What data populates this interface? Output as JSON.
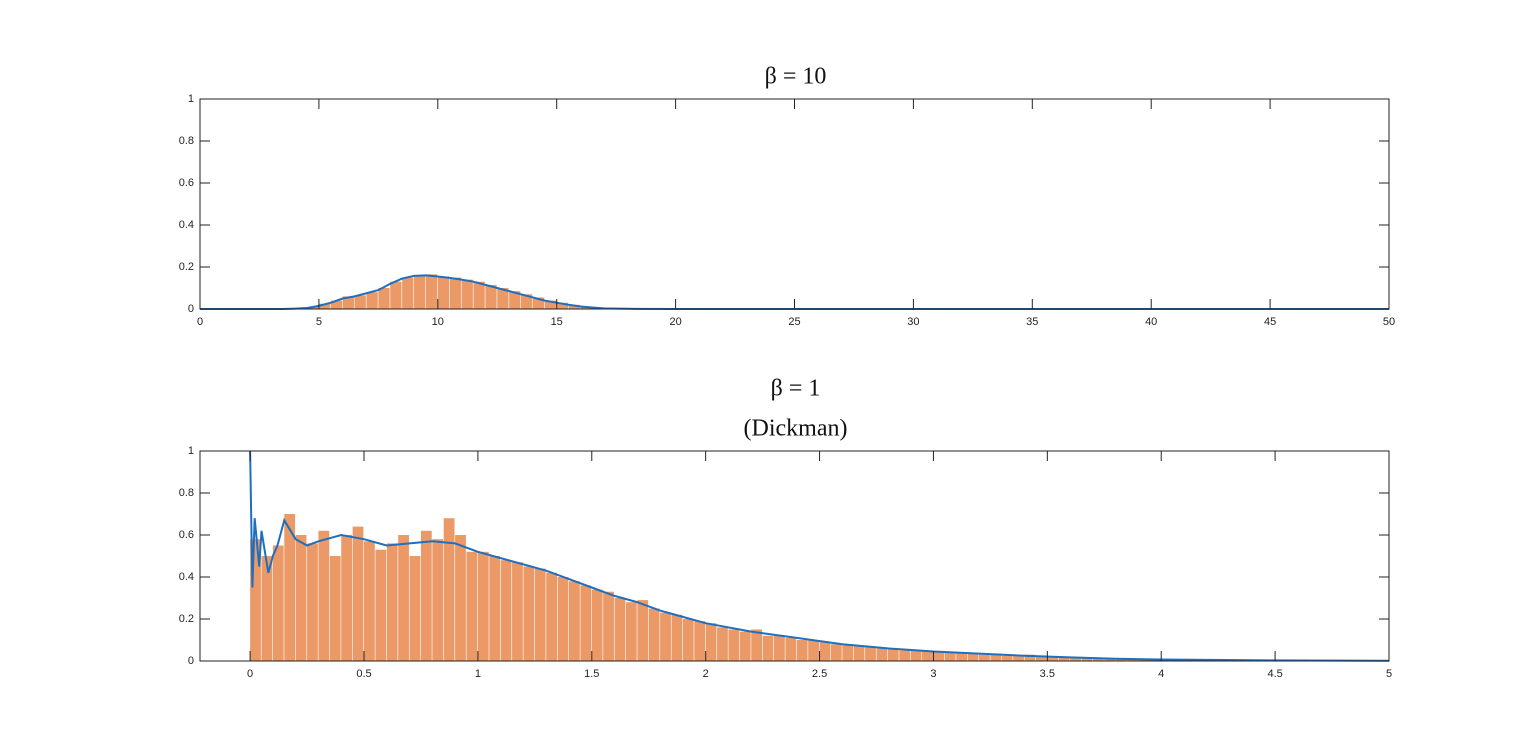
{
  "chart_data": [
    {
      "type": "histogram",
      "title": "β = 10",
      "bins": [
        3.5,
        4,
        4.5,
        5,
        5.5,
        6,
        6.5,
        7,
        7.5,
        8,
        8.5,
        9,
        9.5,
        10,
        10.5,
        11,
        11.5,
        12,
        12.5,
        13,
        13.5,
        14,
        14.5,
        15,
        15.5,
        16,
        16.5,
        17,
        17.5
      ],
      "values": [
        0.002,
        0.004,
        0.01,
        0.025,
        0.04,
        0.06,
        0.065,
        0.08,
        0.1,
        0.13,
        0.15,
        0.16,
        0.165,
        0.155,
        0.15,
        0.14,
        0.13,
        0.115,
        0.1,
        0.085,
        0.07,
        0.055,
        0.04,
        0.03,
        0.02,
        0.012,
        0.007,
        0.003
      ],
      "color": "#eb9a67",
      "curve": {
        "color": "#1f6fbf",
        "x": [
          0,
          3.5,
          4,
          4.5,
          5,
          5.5,
          6,
          6.5,
          7,
          7.5,
          8,
          8.5,
          9,
          9.5,
          10,
          10.5,
          11,
          11.5,
          12,
          12.5,
          13,
          13.5,
          14,
          14.5,
          15,
          15.5,
          16,
          16.5,
          17,
          18,
          20,
          50
        ],
        "values": [
          0,
          0,
          0.002,
          0.005,
          0.015,
          0.03,
          0.05,
          0.06,
          0.075,
          0.09,
          0.12,
          0.145,
          0.158,
          0.16,
          0.155,
          0.148,
          0.14,
          0.13,
          0.115,
          0.1,
          0.085,
          0.07,
          0.055,
          0.04,
          0.03,
          0.02,
          0.012,
          0.007,
          0.003,
          0.001,
          0,
          0
        ]
      },
      "xlim": [
        0,
        50
      ],
      "xticks": [
        0,
        5,
        10,
        15,
        20,
        25,
        30,
        35,
        40,
        45,
        50
      ],
      "ylim": [
        0,
        1
      ],
      "yticks": [
        0,
        0.2,
        0.4,
        0.6,
        0.8,
        1
      ]
    },
    {
      "type": "histogram",
      "title": "β = 1",
      "subtitle": "(Dickman)",
      "bins": [
        0,
        0.05,
        0.1,
        0.15,
        0.2,
        0.25,
        0.3,
        0.35,
        0.4,
        0.45,
        0.5,
        0.55,
        0.6,
        0.65,
        0.7,
        0.75,
        0.8,
        0.85,
        0.9,
        0.95,
        1,
        1.05,
        1.1,
        1.15,
        1.2,
        1.25,
        1.3,
        1.35,
        1.4,
        1.45,
        1.5,
        1.55,
        1.6,
        1.65,
        1.7,
        1.75,
        1.8,
        1.85,
        1.9,
        1.95,
        2,
        2.05,
        2.1,
        2.15,
        2.2,
        2.25,
        2.3,
        2.35,
        2.4,
        2.45,
        2.5,
        2.55,
        2.6,
        2.65,
        2.7,
        2.75,
        2.8,
        2.85,
        2.9,
        2.95,
        3,
        3.05,
        3.1,
        3.15,
        3.2,
        3.25,
        3.3,
        3.35,
        3.4,
        3.45,
        3.5,
        3.55,
        3.6,
        3.65,
        3.7,
        3.75,
        3.8,
        3.85,
        3.9,
        3.95,
        4,
        4.05,
        4.1,
        4.15,
        4.2,
        4.25,
        4.3,
        4.35,
        4.4,
        4.45,
        4.5,
        4.55,
        4.6
      ],
      "values": [
        0.58,
        0.5,
        0.55,
        0.7,
        0.6,
        0.56,
        0.62,
        0.5,
        0.6,
        0.64,
        0.57,
        0.53,
        0.56,
        0.6,
        0.5,
        0.62,
        0.58,
        0.68,
        0.6,
        0.52,
        0.52,
        0.5,
        0.48,
        0.47,
        0.45,
        0.44,
        0.42,
        0.4,
        0.38,
        0.36,
        0.34,
        0.33,
        0.3,
        0.28,
        0.29,
        0.25,
        0.23,
        0.22,
        0.2,
        0.19,
        0.18,
        0.16,
        0.15,
        0.14,
        0.15,
        0.12,
        0.12,
        0.11,
        0.1,
        0.1,
        0.09,
        0.08,
        0.08,
        0.07,
        0.07,
        0.06,
        0.06,
        0.05,
        0.05,
        0.05,
        0.045,
        0.04,
        0.04,
        0.035,
        0.03,
        0.035,
        0.025,
        0.025,
        0.03,
        0.02,
        0.02,
        0.018,
        0.015,
        0.014,
        0.012,
        0.01,
        0.012,
        0.009,
        0.008,
        0.008,
        0.007,
        0.006,
        0.005,
        0.006,
        0.004,
        0.004,
        0.003,
        0.004,
        0.003,
        0.002,
        0.003,
        0.002
      ],
      "color": "#eb9a67",
      "curve": {
        "color": "#1f6fbf",
        "x": [
          0,
          0.01,
          0.02,
          0.04,
          0.05,
          0.08,
          0.1,
          0.12,
          0.15,
          0.2,
          0.25,
          0.3,
          0.4,
          0.5,
          0.6,
          0.7,
          0.8,
          0.9,
          1,
          1.1,
          1.2,
          1.3,
          1.4,
          1.5,
          1.6,
          1.7,
          1.8,
          1.9,
          2,
          2.2,
          2.4,
          2.6,
          2.8,
          3,
          3.2,
          3.4,
          3.6,
          3.8,
          4,
          4.5,
          5
        ],
        "values": [
          1,
          0.35,
          0.68,
          0.45,
          0.62,
          0.42,
          0.5,
          0.55,
          0.67,
          0.58,
          0.55,
          0.57,
          0.6,
          0.58,
          0.55,
          0.56,
          0.57,
          0.56,
          0.52,
          0.49,
          0.46,
          0.43,
          0.39,
          0.35,
          0.31,
          0.28,
          0.24,
          0.21,
          0.18,
          0.14,
          0.11,
          0.08,
          0.06,
          0.045,
          0.035,
          0.025,
          0.017,
          0.011,
          0.007,
          0.003,
          0.001
        ]
      },
      "xlim": [
        -0.22,
        5
      ],
      "xticks": [
        0,
        0.5,
        1,
        1.5,
        2,
        2.5,
        3,
        3.5,
        4,
        4.5,
        5
      ],
      "ylim": [
        0,
        1
      ],
      "yticks": [
        0,
        0.2,
        0.4,
        0.6,
        0.8,
        1
      ]
    }
  ]
}
